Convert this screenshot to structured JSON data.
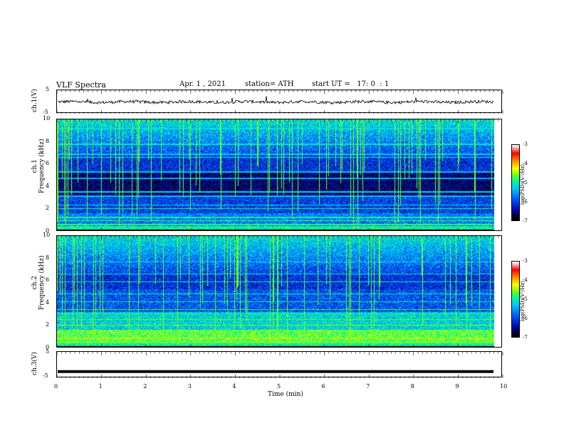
{
  "header": {
    "title": "VLF Spectra",
    "date": "Apr. 1 , 2021",
    "station": "station= ATH",
    "start_ut": "start UT =   17: 0  : 1"
  },
  "chart_data": [
    {
      "type": "line",
      "name": "ch.1 waveform",
      "ylabel": "ch.1(V)",
      "yticks": [
        "5",
        "-5"
      ],
      "ylim": [
        -5,
        5
      ],
      "xlim": [
        0,
        10
      ],
      "x_end_min": 9.8,
      "approx_level_V": 0.0,
      "approx_noise_amplitude_V": 0.8
    },
    {
      "type": "heatmap",
      "name": "ch.1 spectrogram",
      "ylabel": "ch.1\nFrequency  (kHz)",
      "yticks": [
        "10",
        "8",
        "6",
        "4",
        "2",
        "0"
      ],
      "ylim": [
        0,
        10
      ],
      "xlim": [
        0,
        10
      ],
      "x_end_min": 9.8,
      "colorbar": {
        "label": "log(PSD)(V²/Hz)",
        "ticks": [
          "-3",
          "-4",
          "-5",
          "-6",
          "-7"
        ],
        "range": [
          -7,
          -3
        ]
      }
    },
    {
      "type": "heatmap",
      "name": "ch.2 spectrogram",
      "ylabel": "ch.2\nFrequency  (kHz)",
      "yticks": [
        "10",
        "8",
        "6",
        "4",
        "2",
        "0"
      ],
      "ylim": [
        0,
        10
      ],
      "xlim": [
        0,
        10
      ],
      "x_end_min": 9.8,
      "colorbar": {
        "label": "log(PSD)(V²/Hz)",
        "ticks": [
          "-3",
          "-4",
          "-5",
          "-6",
          "-7"
        ],
        "range": [
          -7,
          -3
        ]
      }
    },
    {
      "type": "line",
      "name": "ch.3 waveform",
      "ylabel": "ch.3(V)",
      "yticks": [
        "5",
        "-5"
      ],
      "ylim": [
        -5,
        5
      ],
      "xlim": [
        0,
        10
      ],
      "x_end_min": 9.8,
      "approx_level_V": -2.5
    }
  ],
  "x_axis": {
    "label": "Time  (min)",
    "ticks": [
      "0",
      "1",
      "2",
      "3",
      "4",
      "5",
      "6",
      "7",
      "8",
      "9",
      "10"
    ],
    "range": [
      0,
      10
    ]
  }
}
